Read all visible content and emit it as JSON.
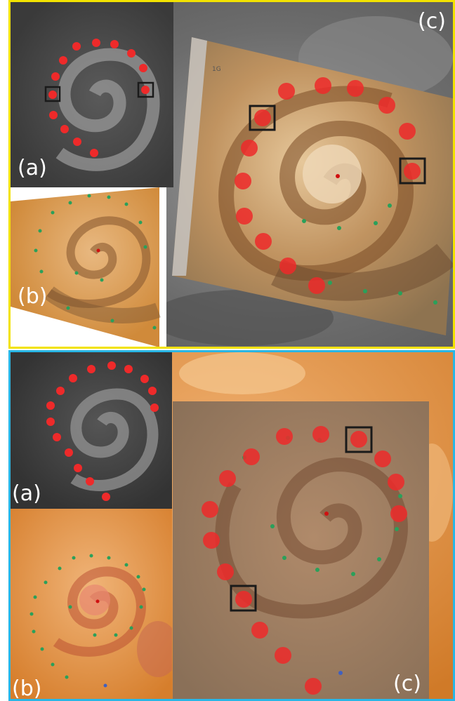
{
  "top_panel": {
    "frame_color": "#f2e200",
    "label_a": "(a)",
    "label_b": "(b)",
    "label_c": "(c)",
    "sticker_text": "1G"
  },
  "bottom_panel": {
    "frame_color": "#29b6e6",
    "label_a": "(a)",
    "label_b": "(b)",
    "label_c": "(c)"
  },
  "colors": {
    "electrode_marker": "#ee2a2a",
    "highlight_box": "#1a1a1a",
    "contact_marker": "#2aa05a",
    "center_marker": "#d01010"
  }
}
